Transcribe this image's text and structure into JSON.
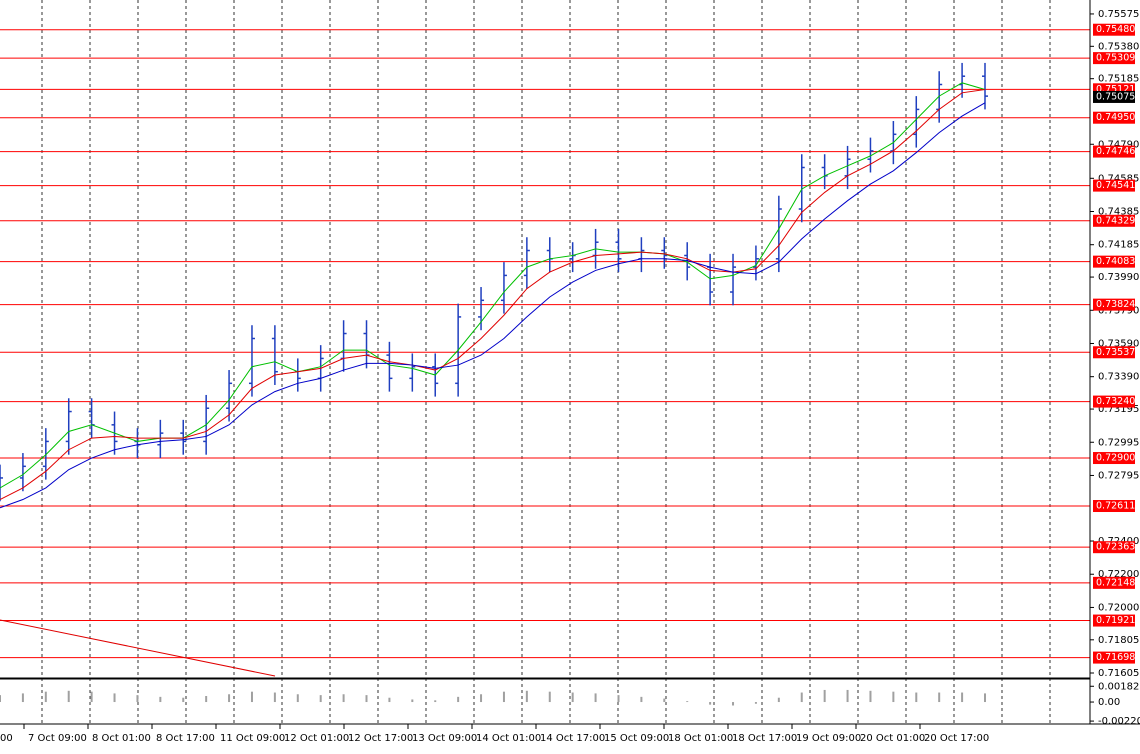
{
  "chart_data": {
    "type": "ohlc",
    "color": "#1f3fbf",
    "ylim": [
      0.71587,
      0.75659
    ],
    "yticks": [
      {
        "value": 0.75575,
        "label": "0.75575"
      },
      {
        "value": 0.7538,
        "label": "0.75380"
      },
      {
        "value": 0.75185,
        "label": "0.75185"
      },
      {
        "value": 0.7479,
        "label": "0.74790"
      },
      {
        "value": 0.74585,
        "label": "0.74585"
      },
      {
        "value": 0.74385,
        "label": "0.74385"
      },
      {
        "value": 0.74185,
        "label": "0.74185"
      },
      {
        "value": 0.7399,
        "label": "0.73990"
      },
      {
        "value": 0.7379,
        "label": "0.73790"
      },
      {
        "value": 0.7359,
        "label": "0.73590"
      },
      {
        "value": 0.7339,
        "label": "0.73390"
      },
      {
        "value": 0.73195,
        "label": "0.73195"
      },
      {
        "value": 0.72995,
        "label": "0.72995"
      },
      {
        "value": 0.72795,
        "label": "0.72795"
      },
      {
        "value": 0.724,
        "label": "0.72400"
      },
      {
        "value": 0.722,
        "label": "0.72200"
      },
      {
        "value": 0.72,
        "label": "0.72000"
      },
      {
        "value": 0.71805,
        "label": "0.71805"
      },
      {
        "value": 0.71605,
        "label": "0.71605"
      }
    ],
    "x_labels": [
      "00",
      "7 Oct 09:00",
      "8 Oct 01:00",
      "8 Oct 17:00",
      "11 Oct 09:00",
      "12 Oct 01:00",
      "12 Oct 17:00",
      "13 Oct 09:00",
      "14 Oct 01:00",
      "14 Oct 17:00",
      "15 Oct 09:00",
      "18 Oct 01:00",
      "18 Oct 17:00",
      "19 Oct 09:00",
      "20 Oct 01:00",
      "20 Oct 17:00"
    ],
    "open": [
      0.7272,
      0.7278,
      0.7285,
      0.73,
      0.7318,
      0.731,
      0.73,
      0.7298,
      0.7305,
      0.73,
      0.732,
      0.7335,
      0.7362,
      0.7342,
      0.7338,
      0.735,
      0.7365,
      0.7352,
      0.7338,
      0.7345,
      0.7335,
      0.7375,
      0.7385,
      0.74,
      0.7415,
      0.741,
      0.7412,
      0.742,
      0.741,
      0.7415,
      0.7412,
      0.7405,
      0.739,
      0.7405,
      0.741,
      0.744,
      0.7465,
      0.746,
      0.747,
      0.7475,
      0.7485,
      0.75,
      0.7515,
      0.752
    ],
    "high": [
      0.7286,
      0.7293,
      0.7308,
      0.7326,
      0.7326,
      0.7318,
      0.7308,
      0.7313,
      0.7313,
      0.7328,
      0.7343,
      0.737,
      0.737,
      0.735,
      0.7358,
      0.7373,
      0.7373,
      0.736,
      0.7353,
      0.7353,
      0.7383,
      0.7393,
      0.7408,
      0.7423,
      0.7423,
      0.742,
      0.7428,
      0.7428,
      0.7423,
      0.7423,
      0.742,
      0.7413,
      0.7413,
      0.7418,
      0.7448,
      0.7473,
      0.7473,
      0.7478,
      0.7483,
      0.7493,
      0.7508,
      0.7523,
      0.7528,
      0.7528
    ],
    "low": [
      0.7264,
      0.727,
      0.7277,
      0.7292,
      0.7302,
      0.7292,
      0.729,
      0.729,
      0.7292,
      0.7292,
      0.7312,
      0.7327,
      0.7334,
      0.733,
      0.733,
      0.7342,
      0.7344,
      0.733,
      0.733,
      0.7327,
      0.7327,
      0.7367,
      0.7377,
      0.7392,
      0.7402,
      0.7402,
      0.7404,
      0.7402,
      0.7402,
      0.7404,
      0.7397,
      0.7382,
      0.7382,
      0.7397,
      0.7402,
      0.7432,
      0.7452,
      0.7452,
      0.7462,
      0.7467,
      0.7477,
      0.7492,
      0.7507,
      0.75
    ],
    "close": [
      0.7278,
      0.7285,
      0.73,
      0.7318,
      0.731,
      0.73,
      0.7298,
      0.7305,
      0.73,
      0.732,
      0.7335,
      0.7362,
      0.7342,
      0.7338,
      0.735,
      0.7365,
      0.7352,
      0.7338,
      0.7345,
      0.7335,
      0.7375,
      0.7385,
      0.74,
      0.7415,
      0.741,
      0.7412,
      0.742,
      0.741,
      0.7415,
      0.7412,
      0.7405,
      0.739,
      0.7405,
      0.741,
      0.744,
      0.7465,
      0.746,
      0.747,
      0.7475,
      0.7485,
      0.75,
      0.7515,
      0.752,
      0.7508
    ],
    "series": [
      {
        "color": "#00c000",
        "values": [
          0.7272,
          0.728,
          0.7292,
          0.7306,
          0.731,
          0.7305,
          0.73,
          0.7302,
          0.7302,
          0.731,
          0.7325,
          0.7345,
          0.7348,
          0.7342,
          0.7345,
          0.7355,
          0.7355,
          0.7346,
          0.7344,
          0.734,
          0.7355,
          0.7372,
          0.739,
          0.7405,
          0.741,
          0.7412,
          0.7416,
          0.7414,
          0.7414,
          0.7413,
          0.7408,
          0.7398,
          0.74,
          0.7406,
          0.7428,
          0.7452,
          0.746,
          0.7466,
          0.7472,
          0.748,
          0.7494,
          0.7508,
          0.7516,
          0.7512
        ]
      },
      {
        "color": "#e00000",
        "values": [
          0.7265,
          0.7272,
          0.7282,
          0.7295,
          0.7302,
          0.7303,
          0.7302,
          0.7302,
          0.7302,
          0.7306,
          0.7316,
          0.7332,
          0.734,
          0.7342,
          0.7344,
          0.735,
          0.7352,
          0.7348,
          0.7346,
          0.7343,
          0.735,
          0.7362,
          0.7376,
          0.7392,
          0.7402,
          0.7408,
          0.7412,
          0.7413,
          0.7414,
          0.7413,
          0.741,
          0.7403,
          0.7402,
          0.7404,
          0.7418,
          0.7438,
          0.745,
          0.746,
          0.7467,
          0.7475,
          0.7487,
          0.75,
          0.751,
          0.7512
        ]
      },
      {
        "color": "#0000c8",
        "values": [
          0.726,
          0.7265,
          0.7272,
          0.7283,
          0.729,
          0.7295,
          0.7298,
          0.73,
          0.7301,
          0.7303,
          0.731,
          0.7322,
          0.733,
          0.7335,
          0.7338,
          0.7343,
          0.7347,
          0.7347,
          0.7346,
          0.7344,
          0.7346,
          0.7352,
          0.7362,
          0.7375,
          0.7387,
          0.7396,
          0.7403,
          0.7407,
          0.741,
          0.741,
          0.7409,
          0.7405,
          0.7402,
          0.7401,
          0.7408,
          0.7422,
          0.7434,
          0.7445,
          0.7455,
          0.7463,
          0.7474,
          0.7486,
          0.7496,
          0.7504
        ]
      }
    ],
    "levels": [
      {
        "value": 0.7548,
        "label": "0.75480"
      },
      {
        "value": 0.75309,
        "label": "0.75309"
      },
      {
        "value": 0.75121,
        "label": "0.75121"
      },
      {
        "value": 0.7495,
        "label": "0.74950"
      },
      {
        "value": 0.74746,
        "label": "0.74746"
      },
      {
        "value": 0.74541,
        "label": "0.74541"
      },
      {
        "value": 0.74329,
        "label": "0.74329"
      },
      {
        "value": 0.74083,
        "label": "0.74083"
      },
      {
        "value": 0.73824,
        "label": "0.73824"
      },
      {
        "value": 0.73537,
        "label": "0.73537"
      },
      {
        "value": 0.7324,
        "label": "0.73240"
      },
      {
        "value": 0.729,
        "label": "0.72900"
      },
      {
        "value": 0.72611,
        "label": "0.72611"
      },
      {
        "value": 0.72363,
        "label": "0.72363"
      },
      {
        "value": 0.72148,
        "label": "0.72148"
      },
      {
        "value": 0.71921,
        "label": "0.71921"
      },
      {
        "value": 0.71698,
        "label": "0.71698"
      }
    ],
    "levels_color": "#ff0000",
    "last_price": {
      "value": 0.75075,
      "label": "0.75075"
    },
    "oscillator": {
      "color": "#a0a0a0",
      "ylim": [
        -0.00231,
        0.00255
      ],
      "yticks": [
        0.001825,
        {
          "value": 0,
          "label": "0.00"
        },
        -0.002204
      ],
      "values": [
        0.0008,
        0.001,
        0.0012,
        0.0013,
        0.0012,
        0.001,
        0.0008,
        0.0006,
        0.0005,
        0.0007,
        0.0009,
        0.0012,
        0.0011,
        0.0009,
        0.0008,
        0.0009,
        0.0008,
        0.0005,
        0.0003,
        0.0002,
        0.0006,
        0.0009,
        0.0012,
        0.0013,
        0.0012,
        0.0011,
        0.001,
        0.0008,
        0.0006,
        0.0004,
        0.0001,
        -0.0003,
        -0.0004,
        -0.0002,
        0.0005,
        0.0011,
        0.0014,
        0.0014,
        0.0013,
        0.0012,
        0.0011,
        0.0011,
        0.0011,
        0.001
      ]
    }
  }
}
